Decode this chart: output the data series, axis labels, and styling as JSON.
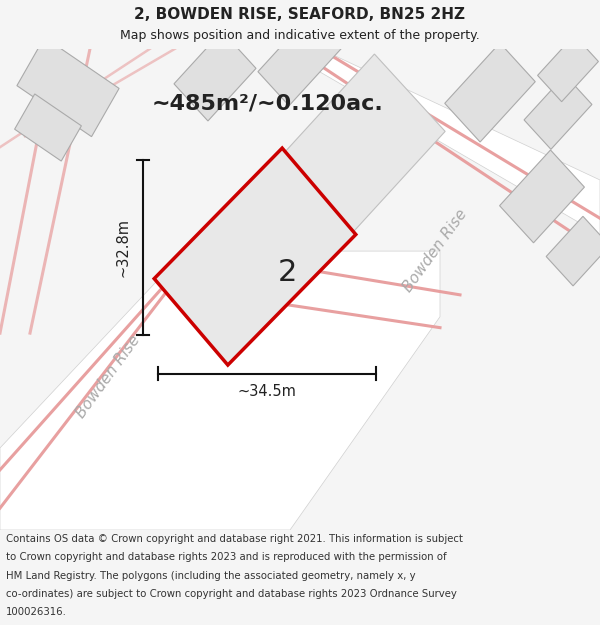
{
  "title": "2, BOWDEN RISE, SEAFORD, BN25 2HZ",
  "subtitle": "Map shows position and indicative extent of the property.",
  "area_text": "~485m²/~0.120ac.",
  "dim_width": "~34.5m",
  "dim_height": "~32.8m",
  "label_number": "2",
  "street_label1": "Bowden Rise",
  "street_label2": "Bowden Rise",
  "footer_lines": [
    "Contains OS data © Crown copyright and database right 2021. This information is subject",
    "to Crown copyright and database rights 2023 and is reproduced with the permission of",
    "HM Land Registry. The polygons (including the associated geometry, namely x, y",
    "co-ordinates) are subject to Crown copyright and database rights 2023 Ordnance Survey",
    "100026316."
  ],
  "bg_color": "#f5f5f5",
  "map_bg": "#f2f2f2",
  "building_fill": "#e0e0e0",
  "building_stroke": "#aaaaaa",
  "pink_road": "#e8a0a0",
  "plot_fill": "#e8e8e8",
  "plot_edge": "#cc0000",
  "dim_line_color": "#111111",
  "text_color": "#222222",
  "footer_color": "#333333",
  "road_fill": "#ffffff",
  "road_stroke": "#d0d0d0"
}
